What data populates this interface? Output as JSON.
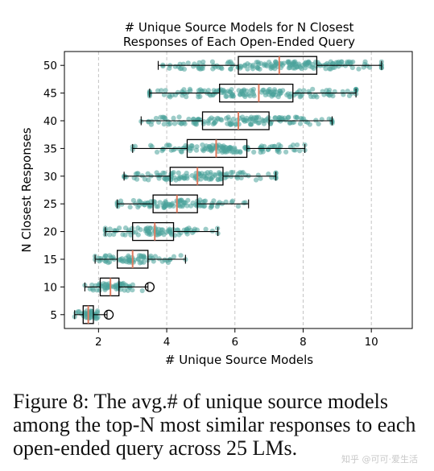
{
  "chart_data": {
    "type": "box",
    "title_lines": [
      "# Unique Source Models for N Closest",
      "Responses of Each Open-Ended Query"
    ],
    "xlabel": "# Unique Source Models",
    "ylabel": "N Closest Responses",
    "xlim": [
      1.0,
      11.2
    ],
    "xticks": [
      2,
      4,
      6,
      8,
      10
    ],
    "categories": [
      5,
      10,
      15,
      20,
      25,
      30,
      35,
      40,
      45,
      50
    ],
    "grid": "vertical-dashed",
    "box_color": "#000000",
    "median_color": "#e07b5f",
    "point_color": "#4aa29a",
    "boxes": [
      {
        "n": 5,
        "whisker_low": 1.3,
        "q1": 1.55,
        "median": 1.7,
        "q3": 1.85,
        "whisker_high": 2.25,
        "outliers": [
          2.3
        ]
      },
      {
        "n": 10,
        "whisker_low": 1.6,
        "q1": 2.05,
        "median": 2.35,
        "q3": 2.6,
        "whisker_high": 3.45,
        "outliers": [
          3.5
        ]
      },
      {
        "n": 15,
        "whisker_low": 1.9,
        "q1": 2.55,
        "median": 3.0,
        "q3": 3.45,
        "whisker_high": 4.55,
        "outliers": []
      },
      {
        "n": 20,
        "whisker_low": 2.2,
        "q1": 3.0,
        "median": 3.65,
        "q3": 4.2,
        "whisker_high": 5.5,
        "outliers": []
      },
      {
        "n": 25,
        "whisker_low": 2.55,
        "q1": 3.6,
        "median": 4.3,
        "q3": 4.9,
        "whisker_high": 6.4,
        "outliers": []
      },
      {
        "n": 30,
        "whisker_low": 2.75,
        "q1": 4.1,
        "median": 4.9,
        "q3": 5.65,
        "whisker_high": 7.2,
        "outliers": []
      },
      {
        "n": 35,
        "whisker_low": 3.0,
        "q1": 4.6,
        "median": 5.45,
        "q3": 6.35,
        "whisker_high": 8.05,
        "outliers": []
      },
      {
        "n": 40,
        "whisker_low": 3.25,
        "q1": 5.05,
        "median": 6.1,
        "q3": 7.0,
        "whisker_high": 8.85,
        "outliers": []
      },
      {
        "n": 45,
        "whisker_low": 3.5,
        "q1": 5.55,
        "median": 6.7,
        "q3": 7.7,
        "whisker_high": 9.55,
        "outliers": []
      },
      {
        "n": 50,
        "whisker_low": 3.75,
        "q1": 6.1,
        "median": 7.3,
        "q3": 8.4,
        "whisker_high": 10.3,
        "outliers": []
      }
    ]
  },
  "caption": {
    "text": "Figure 8: The avg.# of unique source models among the top-N most similar responses to each open-ended query across 25 LMs."
  },
  "watermark": {
    "text": "知乎 @可可·爱生活"
  }
}
